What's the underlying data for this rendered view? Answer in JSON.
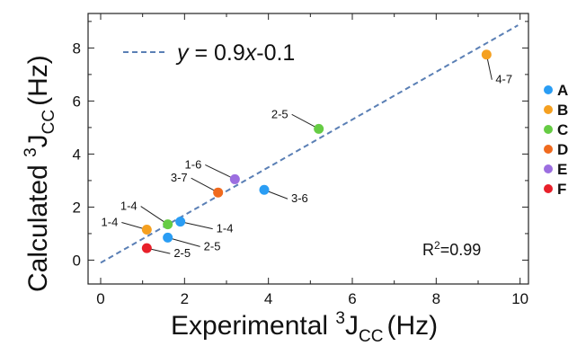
{
  "chart_data": {
    "type": "scatter",
    "xlabel": {
      "main": "Experimental ",
      "sup": "3",
      "j": "J",
      "sub": "CC",
      "unit": "(Hz)"
    },
    "ylabel": {
      "main": "Calculated ",
      "sup": "3",
      "j": "J",
      "sub": "CC",
      "unit": "(Hz)"
    },
    "xlim": [
      -0.3,
      10.2
    ],
    "ylim": [
      -0.9,
      9.3
    ],
    "xticks": [
      0,
      2,
      4,
      6,
      8,
      10
    ],
    "yticks": [
      0,
      2,
      4,
      6,
      8
    ],
    "fit": {
      "slope": 0.9,
      "intercept": -0.1,
      "label_y": "y",
      "label_eq": " = 0.9",
      "label_x": "x",
      "label_rest": "-0.1",
      "color": "#5a7fb5"
    },
    "r2": {
      "pre": "R",
      "sup": "2",
      "post": "=0.99"
    },
    "series": [
      {
        "name": "A",
        "color": "#2a9df4",
        "points": [
          {
            "x": 1.9,
            "y": 1.45,
            "label": "1-4"
          },
          {
            "x": 1.6,
            "y": 0.85,
            "label": "2-5"
          },
          {
            "x": 3.9,
            "y": 2.65,
            "label": "3-6"
          }
        ]
      },
      {
        "name": "B",
        "color": "#f5a020",
        "points": [
          {
            "x": 1.1,
            "y": 1.15,
            "label": "1-4"
          },
          {
            "x": 9.2,
            "y": 7.75,
            "label": "4-7"
          }
        ]
      },
      {
        "name": "C",
        "color": "#66cc44",
        "points": [
          {
            "x": 1.6,
            "y": 1.35,
            "label": "1-4"
          },
          {
            "x": 5.2,
            "y": 4.95,
            "label": "2-5"
          }
        ]
      },
      {
        "name": "D",
        "color": "#f06a1e",
        "points": [
          {
            "x": 2.8,
            "y": 2.55,
            "label": "3-7"
          }
        ]
      },
      {
        "name": "E",
        "color": "#9c6ee0",
        "points": [
          {
            "x": 3.2,
            "y": 3.05,
            "label": "1-6"
          }
        ]
      },
      {
        "name": "F",
        "color": "#e8202a",
        "points": [
          {
            "x": 1.1,
            "y": 0.45,
            "label": "2-5"
          }
        ]
      }
    ]
  }
}
